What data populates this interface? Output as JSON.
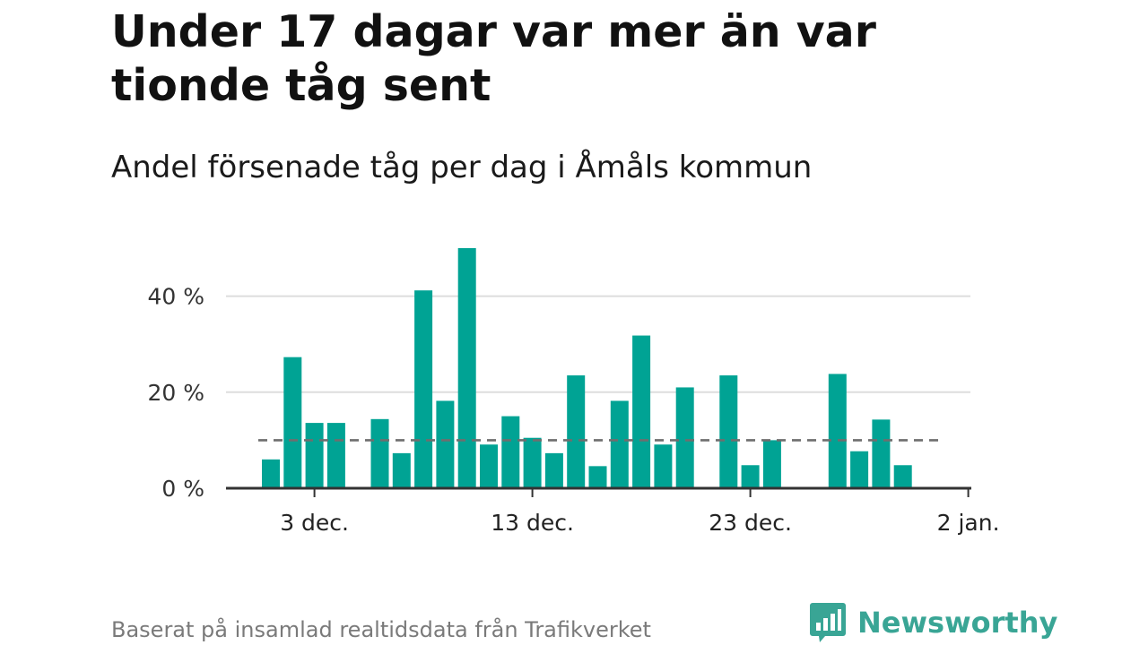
{
  "title": "Under 17 dagar var mer än var tionde tåg sent",
  "subtitle": "Andel försenade tåg per dag i Åmåls kommun",
  "source": "Baserat på insamlad realtidsdata från Trafikverket",
  "brand": {
    "name": "Newsworthy",
    "icon": "newsworthy-logo-icon"
  },
  "colors": {
    "bar": "#00a394",
    "reference_line": "#6e6e6e",
    "grid": "#dddddd",
    "axis": "#333333",
    "brand": "#39a595"
  },
  "chart_data": {
    "type": "bar",
    "x_unit": "day",
    "x_start": "1 dec.",
    "x_ticks": [
      "3 dec.",
      "13 dec.",
      "23 dec.",
      "2 jan."
    ],
    "y_ticks": [
      "0 %",
      "20 %",
      "40 %"
    ],
    "ylim": [
      0,
      50
    ],
    "reference_line": 10,
    "days": [
      1,
      2,
      3,
      4,
      5,
      6,
      7,
      8,
      9,
      10,
      11,
      12,
      13,
      14,
      15,
      16,
      17,
      18,
      19,
      20,
      21,
      22,
      23,
      24,
      25,
      26,
      27,
      28,
      29,
      30,
      31
    ],
    "values": [
      6,
      27.3,
      13.6,
      13.6,
      null,
      14.4,
      7.3,
      41.2,
      18.2,
      50,
      9.1,
      15,
      10.5,
      7.3,
      23.5,
      4.6,
      18.2,
      31.8,
      9.1,
      21,
      null,
      23.5,
      4.8,
      10,
      null,
      null,
      23.8,
      7.7,
      14.3,
      4.8,
      null
    ],
    "grid": true,
    "legend": "none"
  }
}
